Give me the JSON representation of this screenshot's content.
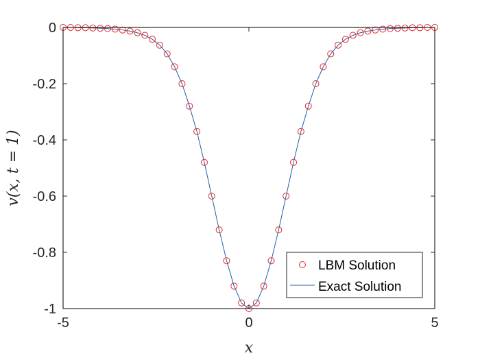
{
  "chart_data": {
    "type": "line",
    "xlabel": "x",
    "ylabel": "v(x, t = 1)",
    "xlim": [
      -5,
      5
    ],
    "ylim": [
      -1,
      0
    ],
    "xticks": [
      -5,
      0,
      5
    ],
    "xtick_labels": [
      "-5",
      "0",
      "5"
    ],
    "yticks": [
      0,
      -0.2,
      -0.4,
      -0.6,
      -0.8,
      -1
    ],
    "ytick_labels": [
      "0",
      "-0.2",
      "-0.4",
      "-0.6",
      "-0.8",
      "-1"
    ],
    "grid": false,
    "legend_position": "bottom-right",
    "series": [
      {
        "name": "LBM Solution",
        "style": "markers",
        "marker": "circle",
        "color": "#e8262a",
        "x": [
          -5.0,
          -4.8,
          -4.6,
          -4.4,
          -4.2,
          -4.0,
          -3.8,
          -3.6,
          -3.4,
          -3.2,
          -3.0,
          -2.8,
          -2.6,
          -2.4,
          -2.2,
          -2.0,
          -1.8,
          -1.6,
          -1.4,
          -1.2,
          -1.0,
          -0.8,
          -0.6,
          -0.4,
          -0.2,
          0.0,
          0.2,
          0.4,
          0.6,
          0.8,
          1.0,
          1.2,
          1.4,
          1.6,
          1.8,
          2.0,
          2.2,
          2.4,
          2.6,
          2.8,
          3.0,
          3.2,
          3.4,
          3.6,
          3.8,
          4.0,
          4.2,
          4.4,
          4.6,
          4.8,
          5.0
        ],
        "y": [
          0.0,
          0.0,
          -0.001,
          -0.001,
          -0.002,
          -0.003,
          -0.004,
          -0.006,
          -0.009,
          -0.013,
          -0.019,
          -0.028,
          -0.042,
          -0.063,
          -0.094,
          -0.14,
          -0.2,
          -0.28,
          -0.37,
          -0.48,
          -0.6,
          -0.72,
          -0.83,
          -0.92,
          -0.98,
          -1.0,
          -0.98,
          -0.92,
          -0.83,
          -0.72,
          -0.6,
          -0.48,
          -0.37,
          -0.28,
          -0.2,
          -0.14,
          -0.094,
          -0.063,
          -0.042,
          -0.028,
          -0.019,
          -0.013,
          -0.009,
          -0.006,
          -0.004,
          -0.003,
          -0.002,
          -0.001,
          -0.001,
          0.0,
          0.0
        ]
      },
      {
        "name": "Exact Solution",
        "style": "line",
        "color": "#1f5fa8",
        "x": [
          -5.0,
          -4.8,
          -4.6,
          -4.4,
          -4.2,
          -4.0,
          -3.8,
          -3.6,
          -3.4,
          -3.2,
          -3.0,
          -2.8,
          -2.6,
          -2.4,
          -2.2,
          -2.0,
          -1.8,
          -1.6,
          -1.4,
          -1.2,
          -1.0,
          -0.8,
          -0.6,
          -0.4,
          -0.2,
          0.0,
          0.2,
          0.4,
          0.6,
          0.8,
          1.0,
          1.2,
          1.4,
          1.6,
          1.8,
          2.0,
          2.2,
          2.4,
          2.6,
          2.8,
          3.0,
          3.2,
          3.4,
          3.6,
          3.8,
          4.0,
          4.2,
          4.4,
          4.6,
          4.8,
          5.0
        ],
        "y": [
          0.0,
          0.0,
          -0.001,
          -0.001,
          -0.002,
          -0.003,
          -0.004,
          -0.006,
          -0.009,
          -0.013,
          -0.019,
          -0.028,
          -0.042,
          -0.063,
          -0.094,
          -0.14,
          -0.2,
          -0.28,
          -0.37,
          -0.48,
          -0.6,
          -0.72,
          -0.83,
          -0.92,
          -0.98,
          -1.0,
          -0.98,
          -0.92,
          -0.83,
          -0.72,
          -0.6,
          -0.48,
          -0.37,
          -0.28,
          -0.2,
          -0.14,
          -0.094,
          -0.063,
          -0.042,
          -0.028,
          -0.019,
          -0.013,
          -0.009,
          -0.006,
          -0.004,
          -0.003,
          -0.002,
          -0.001,
          -0.001,
          0.0,
          0.0
        ]
      }
    ]
  }
}
